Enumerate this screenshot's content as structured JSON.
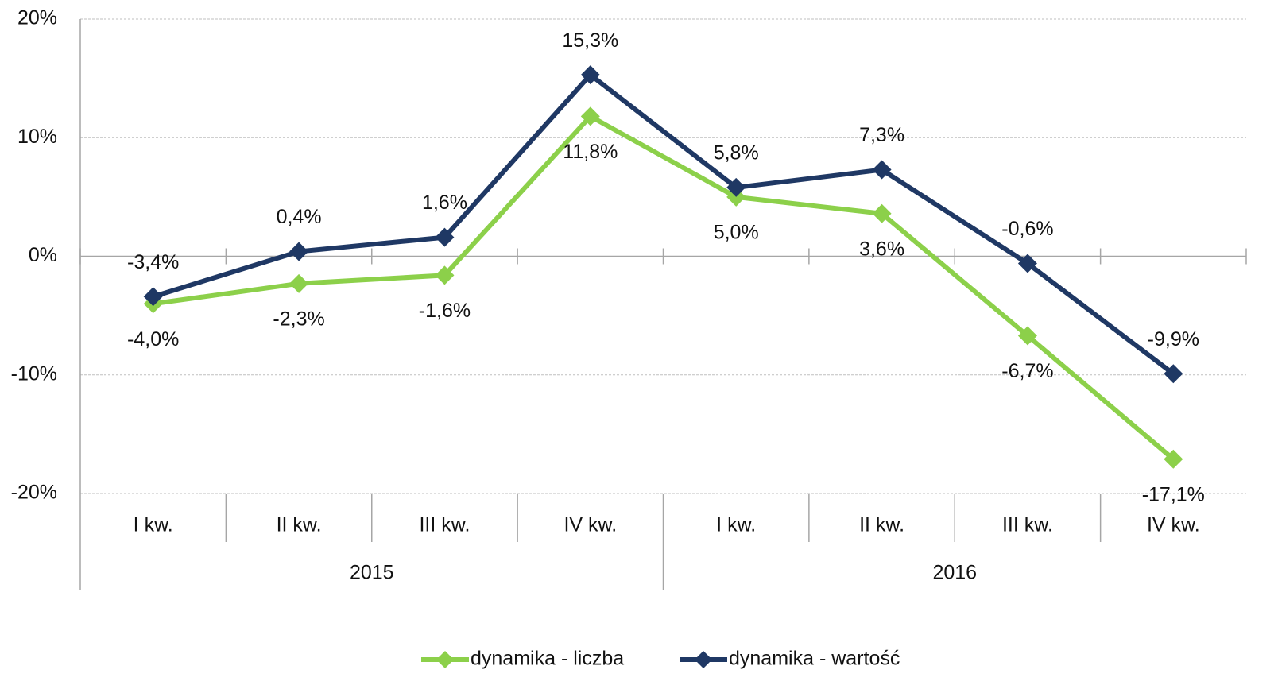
{
  "chart_data": {
    "type": "line",
    "categories": [
      "I kw.",
      "II kw.",
      "III kw.",
      "IV kw.",
      "I kw.",
      "II kw.",
      "III kw.",
      "IV kw."
    ],
    "category_groups": [
      "2015",
      "2016"
    ],
    "series": [
      {
        "name": "dynamika - liczba",
        "color": "#8cd04a",
        "values": [
          -4.0,
          -2.3,
          -1.6,
          11.8,
          5.0,
          3.6,
          -6.7,
          -17.1
        ],
        "value_labels": [
          "-4,0%",
          "-2,3%",
          "-1,6%",
          "11,8%",
          "5,0%",
          "3,6%",
          "-6,7%",
          "-17,1%"
        ]
      },
      {
        "name": "dynamika - wartość",
        "color": "#1f3864",
        "values": [
          -3.4,
          0.4,
          1.6,
          15.3,
          5.8,
          7.3,
          -0.6,
          -9.9
        ],
        "value_labels": [
          "-3,4%",
          "0,4%",
          "1,6%",
          "15,3%",
          "5,8%",
          "7,3%",
          "-0,6%",
          "-9,9%"
        ]
      }
    ],
    "ylim": [
      -20,
      20
    ],
    "yticks": [
      {
        "value": -20,
        "label": "-20%"
      },
      {
        "value": -10,
        "label": "-10%"
      },
      {
        "value": 0,
        "label": "0%"
      },
      {
        "value": 10,
        "label": "10%"
      },
      {
        "value": 20,
        "label": "20%"
      }
    ],
    "grid": true,
    "legend": "bottom"
  }
}
